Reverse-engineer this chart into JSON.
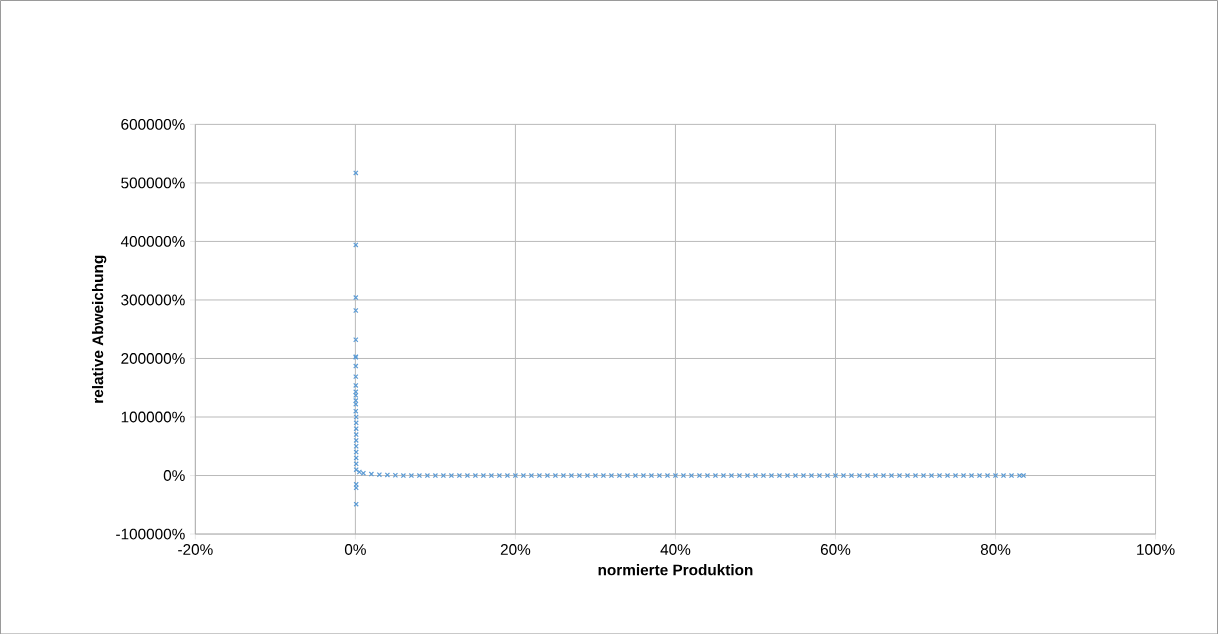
{
  "chart_data": {
    "type": "scatter",
    "xlabel": "normierte Produktion",
    "ylabel": "relative Abweichung",
    "xlim": [
      -20,
      100
    ],
    "ylim": [
      -100000,
      600000
    ],
    "xticks": [
      {
        "value": -20,
        "label": "-20%"
      },
      {
        "value": 0,
        "label": "0%"
      },
      {
        "value": 20,
        "label": "20%"
      },
      {
        "value": 40,
        "label": "40%"
      },
      {
        "value": 60,
        "label": "60%"
      },
      {
        "value": 80,
        "label": "80%"
      },
      {
        "value": 100,
        "label": "100%"
      }
    ],
    "yticks": [
      {
        "value": -100000,
        "label": "-100000%"
      },
      {
        "value": 0,
        "label": "0%"
      },
      {
        "value": 100000,
        "label": "100000%"
      },
      {
        "value": 200000,
        "label": "200000%"
      },
      {
        "value": 300000,
        "label": "300000%"
      },
      {
        "value": 400000,
        "label": "400000%"
      },
      {
        "value": 500000,
        "label": "500000%"
      },
      {
        "value": 600000,
        "label": "600000%"
      }
    ],
    "grid": true,
    "marker": "cross",
    "series": [
      {
        "color": "#5b9bd5",
        "x": [
          0.05,
          0.05,
          0.05,
          0.05,
          0.05,
          0.05,
          0.05,
          0.05,
          0.05,
          0.05,
          0.05,
          0.05,
          0.05,
          0.05,
          0.05,
          0.1,
          0.1,
          0.1,
          0.1,
          0.1,
          0.1,
          0.1,
          0.1,
          0.1,
          0.1,
          0.1,
          0.1,
          0.1,
          0.5,
          1,
          2,
          3,
          4,
          5,
          6,
          7,
          8,
          9,
          10,
          11,
          12,
          13,
          14,
          15,
          16,
          17,
          18,
          19,
          20,
          21,
          22,
          23,
          24,
          25,
          26,
          27,
          28,
          29,
          30,
          31,
          32,
          33,
          34,
          35,
          36,
          37,
          38,
          39,
          40,
          41,
          42,
          43,
          44,
          45,
          46,
          47,
          48,
          49,
          50,
          51,
          52,
          53,
          54,
          55,
          56,
          57,
          58,
          59,
          60,
          61,
          62,
          63,
          64,
          65,
          66,
          67,
          68,
          69,
          70,
          71,
          72,
          73,
          74,
          75,
          76,
          77,
          78,
          79,
          80,
          81,
          82,
          83,
          83.5
        ],
        "values": [
          517000,
          394000,
          304000,
          282000,
          232000,
          203000,
          202000,
          187000,
          169000,
          154000,
          143000,
          137000,
          128000,
          122000,
          110000,
          100000,
          90000,
          80000,
          70000,
          60000,
          50000,
          40000,
          30000,
          20000,
          10000,
          -15000,
          -21000,
          -49000,
          6000,
          4000,
          2500,
          1500,
          1000,
          500,
          0,
          0,
          0,
          0,
          0,
          0,
          0,
          0,
          0,
          0,
          0,
          0,
          0,
          0,
          0,
          0,
          0,
          0,
          0,
          0,
          0,
          0,
          0,
          0,
          0,
          0,
          0,
          0,
          0,
          0,
          0,
          0,
          0,
          0,
          0,
          0,
          0,
          0,
          0,
          0,
          0,
          0,
          0,
          0,
          0,
          0,
          0,
          0,
          0,
          0,
          0,
          0,
          0,
          0,
          0,
          0,
          0,
          0,
          0,
          0,
          0,
          0,
          0,
          0,
          0,
          0,
          0,
          0,
          0,
          0,
          0,
          0,
          0,
          0,
          0,
          0,
          0,
          0,
          0
        ]
      }
    ]
  }
}
